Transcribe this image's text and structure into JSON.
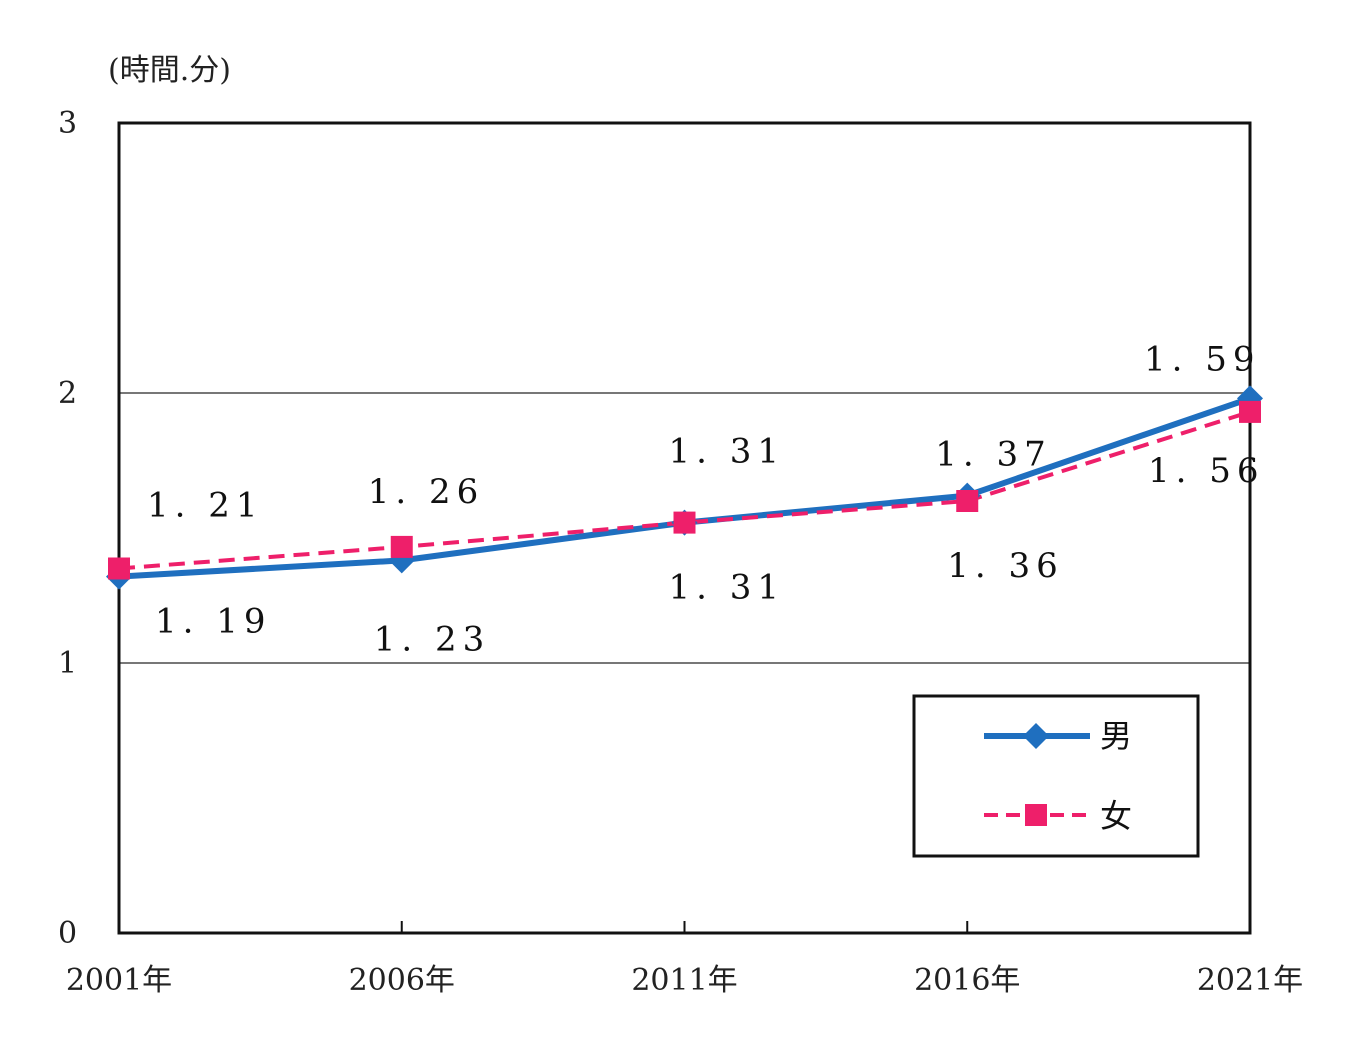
{
  "chart_data": {
    "type": "line",
    "unit_label": "(時間.分)",
    "categories": [
      "2001年",
      "2006年",
      "2011年",
      "2016年",
      "2021年"
    ],
    "ylim": [
      0,
      3
    ],
    "yticks": [
      "0",
      "1",
      "2",
      "3"
    ],
    "grid": true,
    "legend_position": "bottom-right",
    "series": [
      {
        "name": "男",
        "color": "#1f6fbf",
        "line_style": "solid",
        "marker": "diamond",
        "values": [
          1.32,
          1.38,
          1.52,
          1.62,
          1.98
        ],
        "labels": [
          "1. 19",
          "1. 23",
          "1. 31",
          "1. 37",
          "1. 59"
        ]
      },
      {
        "name": "女",
        "color": "#ee1f6a",
        "line_style": "dashed",
        "marker": "square",
        "values": [
          1.35,
          1.43,
          1.52,
          1.6,
          1.93
        ],
        "labels": [
          "1. 21",
          "1. 26",
          "1. 31",
          "1. 36",
          "1. 56"
        ]
      }
    ]
  }
}
